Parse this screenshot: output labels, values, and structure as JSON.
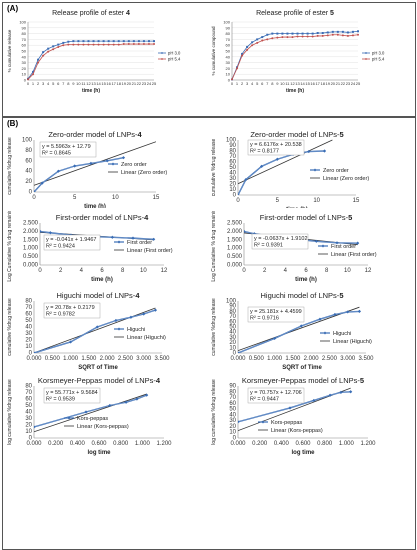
{
  "panels": {
    "a_label": "(A)",
    "b_label": "(B)"
  },
  "chart_data": [
    {
      "type": "line",
      "title_prefix": "Release profile of ester ",
      "title_bold": "4",
      "xlabel": "time (h)",
      "ylabel": "% cumulative release",
      "xlim": [
        0,
        25
      ],
      "ylim": [
        0,
        100
      ],
      "xticks": [
        0,
        1,
        2,
        3,
        4,
        5,
        6,
        7,
        8,
        9,
        10,
        11,
        12,
        13,
        14,
        15,
        16,
        17,
        18,
        19,
        20,
        21,
        22,
        23,
        24,
        25
      ],
      "yticks": [
        0,
        10,
        20,
        30,
        40,
        50,
        60,
        70,
        80,
        90,
        100
      ],
      "legend": "right",
      "series": [
        {
          "name": "pH 3.0",
          "color": "#3b6cb4",
          "x": [
            0,
            1,
            2,
            3,
            4,
            5,
            6,
            7,
            8,
            9,
            10,
            11,
            12,
            13,
            14,
            15,
            16,
            17,
            18,
            19,
            20,
            21,
            22,
            23,
            24,
            25
          ],
          "y": [
            2,
            14,
            35,
            48,
            54,
            58,
            61,
            64,
            66,
            67,
            67,
            67,
            67,
            67,
            67,
            67,
            67,
            67,
            67,
            67,
            67,
            67,
            67,
            67,
            67,
            67
          ]
        },
        {
          "name": "pH 5.4",
          "color": "#c0504d",
          "x": [
            0,
            1,
            2,
            3,
            4,
            5,
            6,
            7,
            8,
            9,
            10,
            11,
            12,
            13,
            14,
            15,
            16,
            17,
            18,
            19,
            20,
            21,
            22,
            23,
            24,
            25
          ],
          "y": [
            1,
            10,
            30,
            42,
            49,
            53,
            57,
            60,
            61,
            61,
            61,
            61,
            61,
            61,
            61,
            61,
            61,
            61,
            61,
            62,
            62,
            62,
            62,
            62,
            62,
            62
          ]
        }
      ]
    },
    {
      "type": "line",
      "title_prefix": "Release profile of ester ",
      "title_bold": "5",
      "xlabel": "time (h)",
      "ylabel": "% cumulative compound",
      "xlim": [
        0,
        25
      ],
      "ylim": [
        0,
        100
      ],
      "xticks": [
        0,
        1,
        2,
        3,
        4,
        5,
        6,
        7,
        8,
        9,
        10,
        11,
        12,
        13,
        14,
        15,
        16,
        17,
        18,
        19,
        20,
        21,
        22,
        23,
        24,
        25
      ],
      "yticks": [
        0,
        10,
        20,
        30,
        40,
        50,
        60,
        70,
        80,
        90,
        100
      ],
      "legend": "right",
      "series": [
        {
          "name": "pH 3.0",
          "color": "#3b6cb4",
          "x": [
            0,
            1,
            2,
            3,
            4,
            5,
            6,
            7,
            8,
            9,
            10,
            11,
            12,
            13,
            14,
            15,
            16,
            17,
            18,
            19,
            20,
            21,
            22,
            23,
            24,
            25
          ],
          "y": [
            1,
            22,
            45,
            57,
            65,
            70,
            74,
            78,
            80,
            80,
            80,
            80,
            80,
            80,
            80,
            80,
            80,
            81,
            81,
            82,
            83,
            83,
            83,
            82,
            83,
            84
          ]
        },
        {
          "name": "pH 5.4",
          "color": "#c0504d",
          "x": [
            0,
            1,
            2,
            3,
            4,
            5,
            6,
            7,
            8,
            9,
            10,
            11,
            12,
            13,
            14,
            15,
            16,
            17,
            18,
            19,
            20,
            21,
            22,
            23,
            24,
            25
          ],
          "y": [
            1,
            20,
            42,
            52,
            60,
            64,
            68,
            70,
            72,
            73,
            74,
            74,
            74,
            75,
            75,
            75,
            75,
            76,
            76,
            77,
            78,
            78,
            77,
            76,
            77,
            78
          ]
        }
      ]
    },
    {
      "type": "line",
      "title_prefix": "Zero-order model of LNPs-",
      "title_bold": "4",
      "xlabel": "time (h)",
      "ylabel": "cumulative %drug release",
      "xlim": [
        0,
        15
      ],
      "ylim": [
        0,
        100
      ],
      "xticks": [
        0,
        5,
        10,
        15
      ],
      "yticks": [
        0,
        20,
        40,
        60,
        80,
        100
      ],
      "equation": "y = 5.5963x + 12.79",
      "r2": "R² = 0.8645",
      "fit": {
        "slope": 5.5963,
        "intercept": 12.79
      },
      "legend": "right",
      "series": [
        {
          "name": "Zero order",
          "x": [
            0,
            1,
            3,
            5,
            7,
            9,
            11
          ],
          "y": [
            0,
            17,
            40,
            50,
            55,
            60,
            66
          ]
        },
        {
          "name": "Linear (Zero order)",
          "x": [
            -2,
            15
          ],
          "y": [
            1.6,
            96.7
          ]
        }
      ]
    },
    {
      "type": "line",
      "title_prefix": "Zero-order model of LNPs-",
      "title_bold": "5",
      "xlabel": "time (h)",
      "ylabel": "cumulative %drug release",
      "xlim": [
        0,
        15
      ],
      "ylim": [
        0,
        100
      ],
      "xticks": [
        0,
        5,
        10,
        15
      ],
      "yticks": [
        0,
        10,
        20,
        30,
        40,
        50,
        60,
        70,
        80,
        90,
        100
      ],
      "equation": "y = 6.6176x + 20.538",
      "r2": "R² = 0.8177",
      "fit": {
        "slope": 6.6176,
        "intercept": 20.538
      },
      "legend": "right",
      "series": [
        {
          "name": "Zero order",
          "x": [
            0,
            1,
            3,
            5,
            7,
            9,
            11
          ],
          "y": [
            0,
            28,
            52,
            65,
            74,
            79,
            80
          ]
        },
        {
          "name": "Linear (Zero order)",
          "x": [
            0,
            12
          ],
          "y": [
            20.5,
            100
          ]
        }
      ]
    },
    {
      "type": "line",
      "title_prefix": "First-order model of LNPs-",
      "title_bold": "4",
      "xlabel": "time (h)",
      "ylabel": "Log Cumulative % drug remaining",
      "xlim": [
        0,
        12
      ],
      "ylim": [
        0,
        2.5
      ],
      "xticks": [
        0,
        2,
        4,
        6,
        8,
        10,
        12
      ],
      "yticks": [
        "0.000",
        "0.500",
        "1.000",
        "1.500",
        "2.000",
        "2.500"
      ],
      "equation": "y = -0.041x + 1.9467",
      "r2": "R² = 0.9424",
      "fit": {
        "slope": -0.041,
        "intercept": 1.9467
      },
      "legend": "right",
      "series": [
        {
          "name": "First order",
          "x": [
            0,
            1,
            3,
            5,
            7,
            9,
            11
          ],
          "y": [
            2.0,
            1.92,
            1.78,
            1.7,
            1.65,
            1.6,
            1.53
          ]
        },
        {
          "name": "Linear (First order)",
          "x": [
            0,
            11
          ],
          "y": [
            1.947,
            1.496
          ]
        }
      ]
    },
    {
      "type": "line",
      "title_prefix": "First-order model of LNPs-",
      "title_bold": "5",
      "xlabel": "time (h)",
      "ylabel": "Log Cumulative % drug remaining",
      "xlim": [
        0,
        12
      ],
      "ylim": [
        0,
        2.5
      ],
      "xticks": [
        0,
        2,
        4,
        6,
        8,
        10,
        12
      ],
      "yticks": [
        "0.000",
        "0.500",
        "1.000",
        "1.500",
        "2.000",
        "2.500"
      ],
      "equation": "y = -0.0637x + 1.9102",
      "r2": "R² = 0.9391",
      "fit": {
        "slope": -0.0637,
        "intercept": 1.9102
      },
      "legend": "right",
      "series": [
        {
          "name": "First order",
          "x": [
            0,
            1,
            3,
            5,
            7,
            9,
            11
          ],
          "y": [
            2.0,
            1.86,
            1.68,
            1.54,
            1.41,
            1.32,
            1.3
          ]
        },
        {
          "name": "Linear (First order)",
          "x": [
            0,
            11
          ],
          "y": [
            1.91,
            1.21
          ]
        }
      ]
    },
    {
      "type": "line",
      "title_prefix": "Higuchi model of LNPs-",
      "title_bold": "4",
      "xlabel": "SQRT of Time",
      "ylabel": "cumulative %drug release",
      "xlim": [
        0,
        3.5
      ],
      "ylim": [
        0,
        80
      ],
      "xticks": [
        "0.000",
        "0.500",
        "1.000",
        "1.500",
        "2.000",
        "2.500",
        "3.000",
        "3.500"
      ],
      "yticks": [
        0,
        10,
        20,
        30,
        40,
        50,
        60,
        70,
        80
      ],
      "equation": "y = 20.78x + 0.2179",
      "r2": "R² = 0.9782",
      "fit": {
        "slope": 20.78,
        "intercept": 0.2179
      },
      "legend": "right",
      "series": [
        {
          "name": "Higuchi",
          "x": [
            0,
            1.0,
            1.73,
            2.24,
            2.65,
            3.0,
            3.32
          ],
          "y": [
            0,
            17,
            40,
            50,
            55,
            60,
            66
          ]
        },
        {
          "name": "Linear (Higuchi)",
          "x": [
            0,
            3.32
          ],
          "y": [
            0.2,
            69.2
          ]
        }
      ]
    },
    {
      "type": "line",
      "title_prefix": "Higuchi model of LNPs-",
      "title_bold": "5",
      "xlabel": "SQRT of Time",
      "ylabel": "cumulative %drug release",
      "xlim": [
        0,
        3.5
      ],
      "ylim": [
        0,
        100
      ],
      "xticks": [
        "0.000",
        "0.500",
        "1.000",
        "1.500",
        "2.000",
        "2.500",
        "3.000",
        "3.500"
      ],
      "yticks": [
        0,
        10,
        20,
        30,
        40,
        50,
        60,
        70,
        80,
        90,
        100
      ],
      "equation": "y = 25.181x + 4.4599",
      "r2": "R² = 0.9716",
      "fit": {
        "slope": 25.181,
        "intercept": 4.4599
      },
      "legend": "right",
      "series": [
        {
          "name": "Higuchi",
          "x": [
            0,
            1.0,
            1.73,
            2.24,
            2.65,
            3.0,
            3.32
          ],
          "y": [
            0,
            28,
            52,
            65,
            74,
            79,
            80
          ]
        },
        {
          "name": "Linear (Higuchi)",
          "x": [
            0,
            3.32
          ],
          "y": [
            4.5,
            88.1
          ]
        }
      ]
    },
    {
      "type": "line",
      "title_prefix": "Korsmeyer-Peppas model of LNPs-",
      "title_bold": "4",
      "xlabel": "log time",
      "ylabel": "log cumulative %drug release",
      "xlim": [
        0,
        1.2
      ],
      "ylim": [
        0,
        80
      ],
      "xticks": [
        "0.000",
        "0.200",
        "0.400",
        "0.600",
        "0.800",
        "1.000",
        "1.200"
      ],
      "yticks": [
        0,
        10,
        20,
        30,
        40,
        50,
        60,
        70,
        80
      ],
      "equation": "y = 55.771x + 9.5684",
      "r2": "R² = 0.9539",
      "fit": {
        "slope": 55.771,
        "intercept": 9.5684
      },
      "legend": "left",
      "series": [
        {
          "name": "Kors-peppas",
          "x": [
            0,
            0.48,
            0.7,
            0.85,
            0.95,
            1.04
          ],
          "y": [
            17,
            40,
            50,
            55,
            60,
            66
          ]
        },
        {
          "name": "Linear (Kors-peppas)",
          "x": [
            0,
            1.04
          ],
          "y": [
            9.6,
            67.6
          ]
        }
      ]
    },
    {
      "type": "line",
      "title_prefix": "Korsmeyer-Peppas model of LNPs-",
      "title_bold": "5",
      "xlabel": "log time",
      "ylabel": "log cumulative %drug release",
      "xlim": [
        0,
        1.2
      ],
      "ylim": [
        0,
        90
      ],
      "xticks": [
        "0.000",
        "0.200",
        "0.400",
        "0.600",
        "0.800",
        "1.000",
        "1.200"
      ],
      "yticks": [
        0,
        10,
        20,
        30,
        40,
        50,
        60,
        70,
        80,
        90
      ],
      "equation": "y = 70.757x + 12.706",
      "r2": "R² = 0.9447",
      "fit": {
        "slope": 70.757,
        "intercept": 12.706
      },
      "legend": "left",
      "series": [
        {
          "name": "Kors-peppas",
          "x": [
            0,
            0.48,
            0.7,
            0.85,
            0.95,
            1.04
          ],
          "y": [
            28,
            52,
            65,
            74,
            79,
            80
          ]
        },
        {
          "name": "Linear (Kors-peppas)",
          "x": [
            0,
            1.04
          ],
          "y": [
            12.7,
            86.3
          ]
        }
      ]
    }
  ]
}
